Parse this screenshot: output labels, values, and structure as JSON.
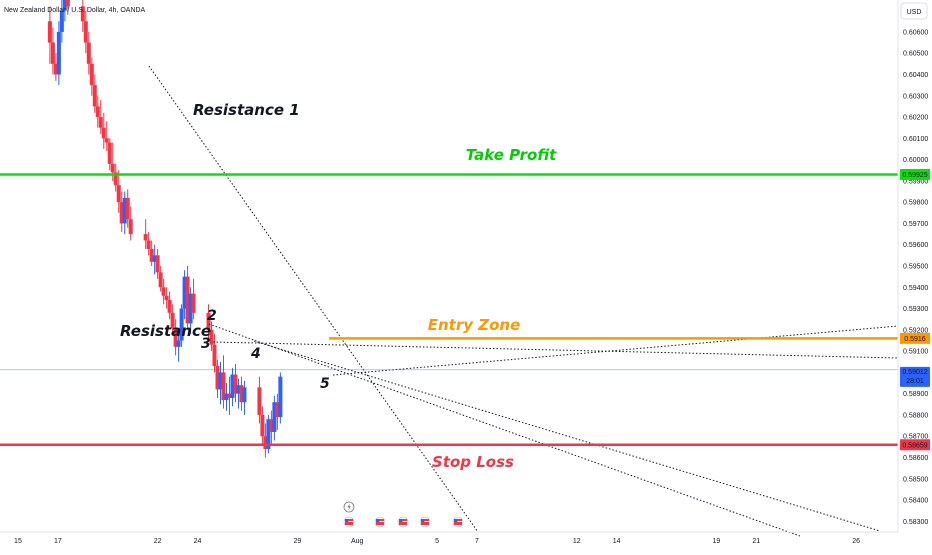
{
  "chart_data": {
    "type": "candlestick",
    "symbol": "New Zealand Dollar / U.S. Dollar, 4h, OANDA",
    "currency": "USD",
    "ylim": [
      0.5825,
      0.6075
    ],
    "y_ticks": [
      0.583,
      0.584,
      0.585,
      0.586,
      0.587,
      0.588,
      0.589,
      0.591,
      0.592,
      0.593,
      0.594,
      0.595,
      0.596,
      0.597,
      0.598,
      0.599,
      0.6,
      0.601,
      0.602,
      0.603,
      0.604,
      0.605,
      0.606
    ],
    "y_tick_labels": [
      "0.58300",
      "0.58400",
      "0.58500",
      "0.58600",
      "0.58700",
      "0.58800",
      "0.58900",
      "0.59100",
      "0.59200",
      "0.59300",
      "0.59400",
      "0.59500",
      "0.59600",
      "0.59700",
      "0.59800",
      "0.59900",
      "0.60000",
      "0.60100",
      "0.60200",
      "0.60300",
      "0.60400",
      "0.60500",
      "0.60600"
    ],
    "x_ticks": [
      {
        "label": "15",
        "day": 15
      },
      {
        "label": "17",
        "day": 17
      },
      {
        "label": "22",
        "day": 22
      },
      {
        "label": "24",
        "day": 24
      },
      {
        "label": "29",
        "day": 29
      },
      {
        "label": "Aug",
        "day": 32
      },
      {
        "label": "5",
        "day": 36
      },
      {
        "label": "7",
        "day": 38
      },
      {
        "label": "12",
        "day": 43
      },
      {
        "label": "14",
        "day": 45
      },
      {
        "label": "19",
        "day": 50
      },
      {
        "label": "21",
        "day": 52
      },
      {
        "label": "26",
        "day": 57
      }
    ],
    "xlim": [
      14.1,
      59.1
    ],
    "candles": [
      {
        "d": 16.6,
        "o": 0.6065,
        "h": 0.6072,
        "l": 0.6045,
        "c": 0.6055
      },
      {
        "d": 16.75,
        "o": 0.6055,
        "h": 0.6062,
        "l": 0.604,
        "c": 0.6045
      },
      {
        "d": 16.9,
        "o": 0.6045,
        "h": 0.605,
        "l": 0.6037,
        "c": 0.604
      },
      {
        "d": 17.05,
        "o": 0.604,
        "h": 0.6065,
        "l": 0.6035,
        "c": 0.606
      },
      {
        "d": 17.2,
        "o": 0.606,
        "h": 0.6075,
        "l": 0.6055,
        "c": 0.607
      },
      {
        "d": 17.35,
        "o": 0.607,
        "h": 0.608,
        "l": 0.6065,
        "c": 0.6075
      },
      {
        "d": 17.5,
        "o": 0.6075,
        "h": 0.6082,
        "l": 0.6068,
        "c": 0.6072
      },
      {
        "d": 18.25,
        "o": 0.6072,
        "h": 0.608,
        "l": 0.606,
        "c": 0.6065
      },
      {
        "d": 18.4,
        "o": 0.6065,
        "h": 0.607,
        "l": 0.605,
        "c": 0.6055
      },
      {
        "d": 18.55,
        "o": 0.6055,
        "h": 0.606,
        "l": 0.604,
        "c": 0.6045
      },
      {
        "d": 18.7,
        "o": 0.6045,
        "h": 0.6048,
        "l": 0.603,
        "c": 0.6035
      },
      {
        "d": 18.85,
        "o": 0.6035,
        "h": 0.604,
        "l": 0.6022,
        "c": 0.6025
      },
      {
        "d": 19.0,
        "o": 0.6025,
        "h": 0.603,
        "l": 0.6015,
        "c": 0.602
      },
      {
        "d": 19.15,
        "o": 0.602,
        "h": 0.6028,
        "l": 0.6012,
        "c": 0.6015
      },
      {
        "d": 19.3,
        "o": 0.6015,
        "h": 0.6022,
        "l": 0.6005,
        "c": 0.601
      },
      {
        "d": 19.45,
        "o": 0.601,
        "h": 0.6018,
        "l": 0.6004,
        "c": 0.6008
      },
      {
        "d": 19.6,
        "o": 0.6008,
        "h": 0.601,
        "l": 0.5995,
        "c": 0.5998
      },
      {
        "d": 19.75,
        "o": 0.5998,
        "h": 0.6008,
        "l": 0.599,
        "c": 0.5994
      },
      {
        "d": 19.9,
        "o": 0.5994,
        "h": 0.5998,
        "l": 0.5985,
        "c": 0.5988
      },
      {
        "d": 20.05,
        "o": 0.5988,
        "h": 0.5995,
        "l": 0.5975,
        "c": 0.598
      },
      {
        "d": 20.2,
        "o": 0.598,
        "h": 0.5985,
        "l": 0.5966,
        "c": 0.597
      },
      {
        "d": 20.35,
        "o": 0.597,
        "h": 0.5985,
        "l": 0.5965,
        "c": 0.5982
      },
      {
        "d": 20.5,
        "o": 0.5982,
        "h": 0.5986,
        "l": 0.5968,
        "c": 0.5972
      },
      {
        "d": 20.65,
        "o": 0.5972,
        "h": 0.5978,
        "l": 0.5962,
        "c": 0.5965
      },
      {
        "d": 21.4,
        "o": 0.5965,
        "h": 0.5972,
        "l": 0.5958,
        "c": 0.5962
      },
      {
        "d": 21.55,
        "o": 0.5962,
        "h": 0.5966,
        "l": 0.5955,
        "c": 0.5958
      },
      {
        "d": 21.7,
        "o": 0.5958,
        "h": 0.5962,
        "l": 0.595,
        "c": 0.5952
      },
      {
        "d": 21.85,
        "o": 0.5952,
        "h": 0.596,
        "l": 0.5946,
        "c": 0.5955
      },
      {
        "d": 22.0,
        "o": 0.5955,
        "h": 0.5958,
        "l": 0.5944,
        "c": 0.5947
      },
      {
        "d": 22.15,
        "o": 0.5947,
        "h": 0.595,
        "l": 0.5938,
        "c": 0.594
      },
      {
        "d": 22.3,
        "o": 0.594,
        "h": 0.5944,
        "l": 0.5932,
        "c": 0.5936
      },
      {
        "d": 22.45,
        "o": 0.5936,
        "h": 0.594,
        "l": 0.593,
        "c": 0.5934
      },
      {
        "d": 22.6,
        "o": 0.5934,
        "h": 0.5938,
        "l": 0.5925,
        "c": 0.5928
      },
      {
        "d": 22.75,
        "o": 0.5928,
        "h": 0.5932,
        "l": 0.5918,
        "c": 0.5921
      },
      {
        "d": 22.9,
        "o": 0.5921,
        "h": 0.5925,
        "l": 0.5908,
        "c": 0.5912
      },
      {
        "d": 23.05,
        "o": 0.5912,
        "h": 0.592,
        "l": 0.5905,
        "c": 0.5915
      },
      {
        "d": 23.2,
        "o": 0.5915,
        "h": 0.5932,
        "l": 0.5912,
        "c": 0.593
      },
      {
        "d": 23.35,
        "o": 0.593,
        "h": 0.5948,
        "l": 0.5925,
        "c": 0.5945
      },
      {
        "d": 23.5,
        "o": 0.5945,
        "h": 0.595,
        "l": 0.592,
        "c": 0.5923
      },
      {
        "d": 23.65,
        "o": 0.5923,
        "h": 0.594,
        "l": 0.5918,
        "c": 0.5937
      },
      {
        "d": 23.8,
        "o": 0.5937,
        "h": 0.5944,
        "l": 0.5925,
        "c": 0.5928
      },
      {
        "d": 24.55,
        "o": 0.5928,
        "h": 0.5932,
        "l": 0.5916,
        "c": 0.592
      },
      {
        "d": 24.7,
        "o": 0.592,
        "h": 0.5924,
        "l": 0.591,
        "c": 0.5913
      },
      {
        "d": 24.85,
        "o": 0.5913,
        "h": 0.5918,
        "l": 0.59,
        "c": 0.5903
      },
      {
        "d": 25.0,
        "o": 0.5903,
        "h": 0.5906,
        "l": 0.5888,
        "c": 0.5892
      },
      {
        "d": 25.15,
        "o": 0.5892,
        "h": 0.5905,
        "l": 0.5885,
        "c": 0.59
      },
      {
        "d": 25.3,
        "o": 0.59,
        "h": 0.5908,
        "l": 0.5883,
        "c": 0.5887
      },
      {
        "d": 25.45,
        "o": 0.5887,
        "h": 0.5895,
        "l": 0.5882,
        "c": 0.589
      },
      {
        "d": 25.6,
        "o": 0.589,
        "h": 0.5898,
        "l": 0.588,
        "c": 0.5888
      },
      {
        "d": 25.75,
        "o": 0.5888,
        "h": 0.5902,
        "l": 0.5884,
        "c": 0.5899
      },
      {
        "d": 25.9,
        "o": 0.5899,
        "h": 0.5904,
        "l": 0.5886,
        "c": 0.589
      },
      {
        "d": 26.05,
        "o": 0.589,
        "h": 0.5897,
        "l": 0.5883,
        "c": 0.5894
      },
      {
        "d": 26.2,
        "o": 0.5894,
        "h": 0.5898,
        "l": 0.5882,
        "c": 0.5886
      },
      {
        "d": 26.35,
        "o": 0.5886,
        "h": 0.5896,
        "l": 0.588,
        "c": 0.5893
      },
      {
        "d": 27.1,
        "o": 0.5893,
        "h": 0.5898,
        "l": 0.5876,
        "c": 0.588
      },
      {
        "d": 27.25,
        "o": 0.588,
        "h": 0.5884,
        "l": 0.5866,
        "c": 0.587
      },
      {
        "d": 27.4,
        "o": 0.587,
        "h": 0.5876,
        "l": 0.586,
        "c": 0.5864
      },
      {
        "d": 27.55,
        "o": 0.5864,
        "h": 0.588,
        "l": 0.5862,
        "c": 0.5878
      },
      {
        "d": 27.7,
        "o": 0.5878,
        "h": 0.5882,
        "l": 0.5866,
        "c": 0.5872
      },
      {
        "d": 27.85,
        "o": 0.5872,
        "h": 0.5889,
        "l": 0.5868,
        "c": 0.5886
      },
      {
        "d": 28.0,
        "o": 0.5886,
        "h": 0.589,
        "l": 0.5873,
        "c": 0.5879
      },
      {
        "d": 28.15,
        "o": 0.5879,
        "h": 0.59,
        "l": 0.5876,
        "c": 0.5898
      }
    ],
    "levels": [
      {
        "label": "Take Profit",
        "value": 0.5993,
        "price_label": "0.59925"
      },
      {
        "label": "Entry Zone",
        "value": 0.5916,
        "price_label": "0.5916"
      },
      {
        "label": "Stop Loss",
        "value": 0.5866,
        "price_label": "0.58659"
      }
    ],
    "current_price": {
      "value": 0.59012,
      "label": "0.59012",
      "countdown": "28:01"
    },
    "annotations": [
      "Resistance 1",
      "Resistance",
      "2",
      "3",
      "4",
      "5"
    ],
    "colors": {
      "up": "#2962ff",
      "down": "#f23645",
      "take_profit": "#00e600",
      "entry": "#ff9800",
      "stop": "#f23645",
      "current": "#2962ff",
      "grid": "#e0e3eb",
      "text": "#131722"
    }
  }
}
